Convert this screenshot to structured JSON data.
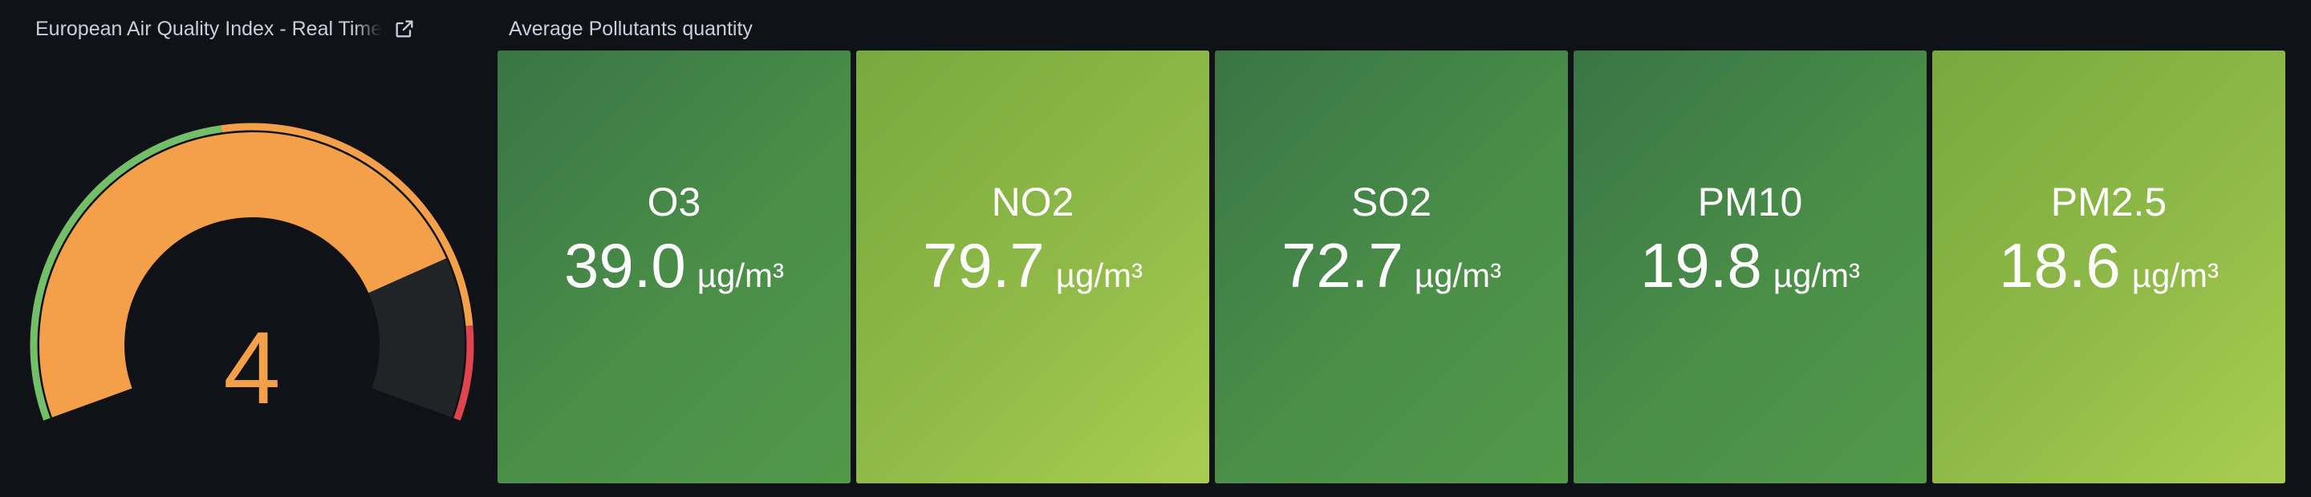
{
  "gauge_panel": {
    "title": "European Air Quality Index - Real Time",
    "link_icon": "external-link-icon",
    "value": "4",
    "level": 4,
    "level_max": 5,
    "colors": {
      "fill": "#f4a04a",
      "track": "#222327",
      "threshold_good": "#73bf69",
      "threshold_moderate": "#f4a04a",
      "threshold_bad": "#e0454f"
    }
  },
  "pollutants_panel": {
    "title": "Average Pollutants quantity",
    "tiles": [
      {
        "name": "O3",
        "value": "39.0",
        "unit": "µg/m³",
        "color": "dark-green"
      },
      {
        "name": "NO2",
        "value": "79.7",
        "unit": "µg/m³",
        "color": "light-green"
      },
      {
        "name": "SO2",
        "value": "72.7",
        "unit": "µg/m³",
        "color": "dark-green"
      },
      {
        "name": "PM10",
        "value": "19.8",
        "unit": "µg/m³",
        "color": "dark-green"
      },
      {
        "name": "PM2.5",
        "value": "18.6",
        "unit": "µg/m³",
        "color": "light-green"
      }
    ]
  }
}
